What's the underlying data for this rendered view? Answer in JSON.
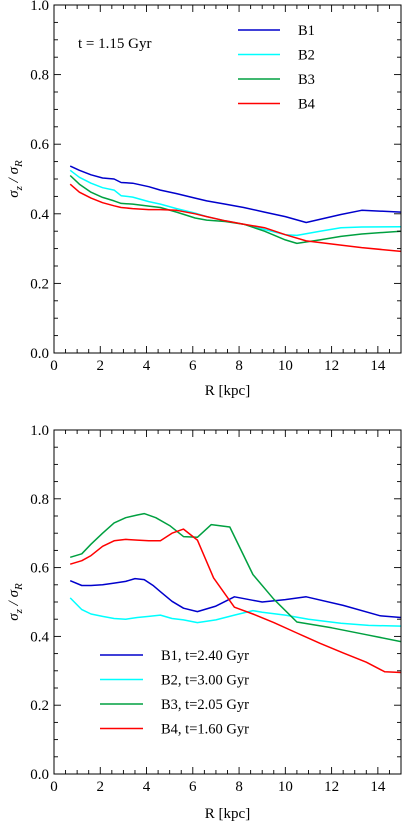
{
  "chart_data": [
    {
      "type": "line",
      "title": "",
      "xlabel": "R [kpc]",
      "ylabel": "σz / σR",
      "ylabel_main": "σ",
      "ylabel_sub1": "z",
      "ylabel_sep": " / σ",
      "ylabel_sub2": "R",
      "xlim": [
        0,
        15
      ],
      "ylim": [
        0,
        1.0
      ],
      "xticks": [
        0,
        2,
        4,
        6,
        8,
        10,
        12,
        14
      ],
      "xtick_labels": [
        "0",
        "2",
        "4",
        "6",
        "8",
        "10",
        "12",
        "14"
      ],
      "yticks": [
        0.0,
        0.2,
        0.4,
        0.6,
        0.8,
        1.0
      ],
      "ytick_labels": [
        "0.0",
        "0.2",
        "0.4",
        "0.6",
        "0.8",
        "1.0"
      ],
      "grid": false,
      "legend_position": "top-right",
      "annotation": "t = 1.15 Gyr",
      "series": [
        {
          "name": "B1",
          "color": "#0000cc",
          "x": [
            0.7,
            1.1,
            1.6,
            2.1,
            2.6,
            2.9,
            3.4,
            4.1,
            4.6,
            5.3,
            6.1,
            6.6,
            7.4,
            8.2,
            9.1,
            10.0,
            10.9,
            12.4,
            13.3,
            15.0
          ],
          "y": [
            0.537,
            0.525,
            0.512,
            0.503,
            0.5,
            0.49,
            0.488,
            0.478,
            0.468,
            0.458,
            0.445,
            0.437,
            0.428,
            0.418,
            0.405,
            0.392,
            0.375,
            0.398,
            0.41,
            0.405
          ]
        },
        {
          "name": "B2",
          "color": "#00ffff",
          "x": [
            0.7,
            1.1,
            1.6,
            2.1,
            2.6,
            2.9,
            3.4,
            4.1,
            4.6,
            5.3,
            6.1,
            6.6,
            7.4,
            8.2,
            9.1,
            10.0,
            10.5,
            11.5,
            12.4,
            13.3,
            15.0
          ],
          "y": [
            0.525,
            0.505,
            0.488,
            0.475,
            0.468,
            0.452,
            0.448,
            0.435,
            0.428,
            0.415,
            0.402,
            0.392,
            0.38,
            0.37,
            0.355,
            0.34,
            0.338,
            0.35,
            0.36,
            0.362,
            0.363
          ]
        },
        {
          "name": "B3",
          "color": "#00a040",
          "x": [
            0.7,
            1.1,
            1.6,
            2.1,
            2.6,
            2.9,
            3.4,
            4.1,
            4.6,
            5.3,
            6.1,
            6.6,
            7.4,
            8.2,
            9.1,
            10.0,
            10.5,
            11.5,
            12.4,
            13.3,
            15.0
          ],
          "y": [
            0.51,
            0.485,
            0.462,
            0.447,
            0.437,
            0.43,
            0.428,
            0.422,
            0.418,
            0.405,
            0.388,
            0.382,
            0.378,
            0.37,
            0.35,
            0.325,
            0.315,
            0.325,
            0.335,
            0.342,
            0.35
          ]
        },
        {
          "name": "B4",
          "color": "#ff0000",
          "x": [
            0.7,
            1.1,
            1.6,
            2.1,
            2.6,
            2.9,
            3.4,
            4.1,
            4.6,
            5.3,
            6.1,
            6.6,
            7.4,
            8.2,
            9.1,
            10.0,
            10.9,
            12.4,
            13.3,
            15.0
          ],
          "y": [
            0.485,
            0.462,
            0.445,
            0.432,
            0.423,
            0.418,
            0.415,
            0.412,
            0.412,
            0.41,
            0.4,
            0.392,
            0.38,
            0.37,
            0.36,
            0.34,
            0.322,
            0.31,
            0.303,
            0.292
          ]
        }
      ]
    },
    {
      "type": "line",
      "title": "",
      "xlabel": "R [kpc]",
      "ylabel": "σz / σR",
      "ylabel_main": "σ",
      "ylabel_sub1": "z",
      "ylabel_sep": " / σ",
      "ylabel_sub2": "R",
      "xlim": [
        0,
        15
      ],
      "ylim": [
        0,
        1.0
      ],
      "xticks": [
        0,
        2,
        4,
        6,
        8,
        10,
        12,
        14
      ],
      "xtick_labels": [
        "0",
        "2",
        "4",
        "6",
        "8",
        "10",
        "12",
        "14"
      ],
      "yticks": [
        0.0,
        0.2,
        0.4,
        0.6,
        0.8,
        1.0
      ],
      "ytick_labels": [
        "0.0",
        "0.2",
        "0.4",
        "0.6",
        "0.8",
        "1.0"
      ],
      "grid": false,
      "legend_position": "bottom-left",
      "series": [
        {
          "name": "B1, t=2.40 Gyr",
          "color": "#0000cc",
          "x": [
            0.7,
            1.2,
            1.6,
            2.1,
            2.6,
            3.1,
            3.5,
            3.9,
            4.3,
            4.6,
            5.1,
            5.6,
            6.2,
            7.0,
            7.8,
            8.6,
            9.0,
            10.0,
            10.9,
            12.5,
            14.1,
            15.0
          ],
          "y": [
            0.562,
            0.548,
            0.548,
            0.55,
            0.555,
            0.56,
            0.568,
            0.565,
            0.547,
            0.53,
            0.502,
            0.482,
            0.472,
            0.488,
            0.515,
            0.505,
            0.5,
            0.507,
            0.515,
            0.49,
            0.46,
            0.455
          ]
        },
        {
          "name": "B2, t=3.00 Gyr",
          "color": "#00ffff",
          "x": [
            0.7,
            1.2,
            1.6,
            2.1,
            2.6,
            3.1,
            3.6,
            4.1,
            4.6,
            5.1,
            5.6,
            6.2,
            7.0,
            7.8,
            8.6,
            9.0,
            10.0,
            11.0,
            12.4,
            13.6,
            15.0
          ],
          "y": [
            0.512,
            0.478,
            0.465,
            0.458,
            0.452,
            0.45,
            0.455,
            0.458,
            0.462,
            0.452,
            0.448,
            0.44,
            0.448,
            0.462,
            0.475,
            0.47,
            0.462,
            0.45,
            0.438,
            0.432,
            0.43
          ]
        },
        {
          "name": "B3, t=2.05 Gyr",
          "color": "#00a040",
          "x": [
            0.7,
            1.2,
            1.6,
            2.1,
            2.6,
            3.1,
            3.6,
            3.9,
            4.4,
            5.0,
            5.6,
            6.2,
            6.8,
            7.6,
            8.6,
            9.5,
            10.5,
            12.0,
            13.5,
            15.0
          ],
          "y": [
            0.63,
            0.64,
            0.668,
            0.7,
            0.73,
            0.745,
            0.753,
            0.757,
            0.745,
            0.722,
            0.69,
            0.688,
            0.725,
            0.718,
            0.58,
            0.508,
            0.442,
            0.425,
            0.405,
            0.385
          ]
        },
        {
          "name": "B4, t=1.60 Gyr",
          "color": "#ff0000",
          "x": [
            0.7,
            1.2,
            1.6,
            2.1,
            2.6,
            3.1,
            3.6,
            4.1,
            4.6,
            5.1,
            5.6,
            6.2,
            6.9,
            7.8,
            8.6,
            9.5,
            10.5,
            11.5,
            12.5,
            13.5,
            14.3,
            15.0
          ],
          "y": [
            0.61,
            0.62,
            0.635,
            0.662,
            0.678,
            0.682,
            0.68,
            0.678,
            0.678,
            0.7,
            0.712,
            0.68,
            0.57,
            0.485,
            0.465,
            0.44,
            0.41,
            0.38,
            0.352,
            0.325,
            0.297,
            0.295
          ]
        }
      ]
    }
  ]
}
